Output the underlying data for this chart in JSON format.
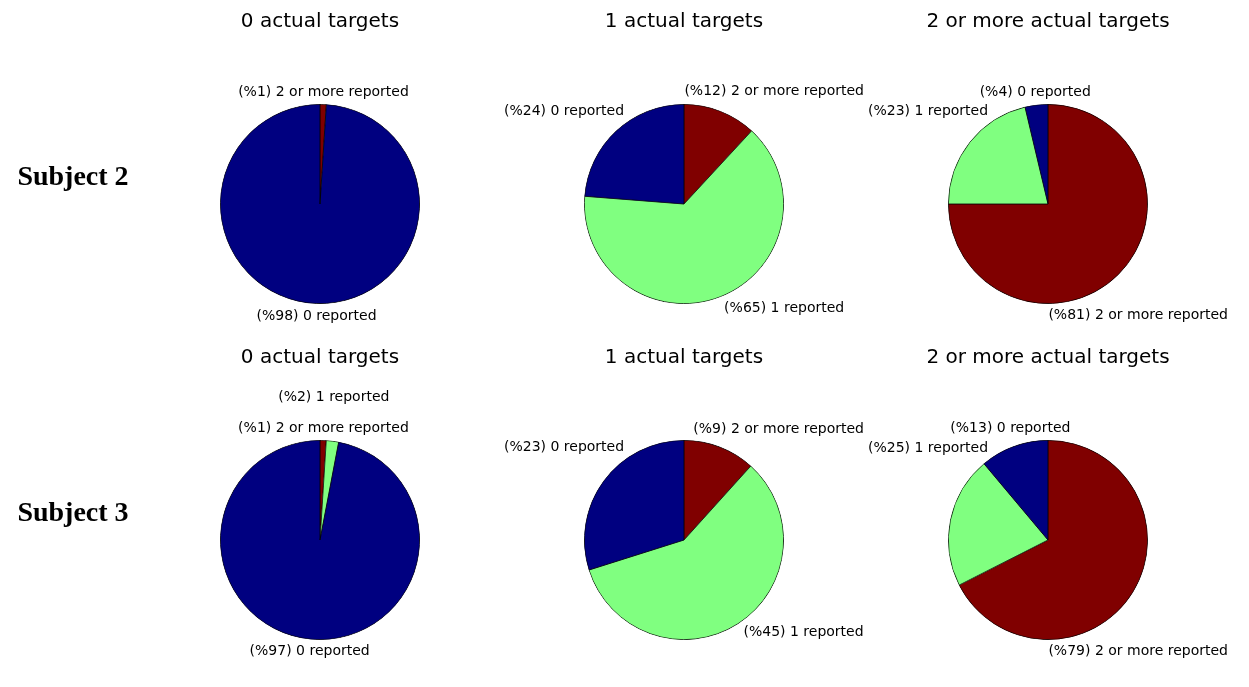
{
  "chart_data": [
    {
      "type": "pie",
      "title": "0 actual targets",
      "annotations": [
        "Subject 2"
      ],
      "categories": [
        "2 or more reported",
        "0 reported"
      ],
      "values": [
        1,
        98
      ],
      "value_labels": [
        "(%1)",
        "(%98)"
      ],
      "colors": [
        "#800000",
        "#000080"
      ],
      "legend": false
    },
    {
      "type": "pie",
      "title": "1 actual targets",
      "categories": [
        "2 or more reported",
        "1 reported",
        "0 reported"
      ],
      "values": [
        12,
        65,
        24
      ],
      "value_labels": [
        "(%12)",
        "(%65)",
        "(%24)"
      ],
      "colors": [
        "#800000",
        "#80ff80",
        "#000080"
      ],
      "legend": false
    },
    {
      "type": "pie",
      "title": "2 or more actual targets",
      "categories": [
        "2 or more reported",
        "1 reported",
        "0 reported"
      ],
      "values": [
        81,
        23,
        4
      ],
      "value_labels": [
        "(%81)",
        "(%23)",
        "(%4)"
      ],
      "colors": [
        "#800000",
        "#80ff80",
        "#000080"
      ],
      "legend": false
    },
    {
      "type": "pie",
      "title": "0 actual targets",
      "annotations": [
        "Subject 3"
      ],
      "categories": [
        "2 or more reported",
        "1 reported",
        "0 reported"
      ],
      "values": [
        1,
        2,
        97
      ],
      "value_labels": [
        "(%1)",
        "(%2)",
        "(%97)"
      ],
      "colors": [
        "#800000",
        "#80ff80",
        "#000080"
      ],
      "legend": false
    },
    {
      "type": "pie",
      "title": "1 actual targets",
      "categories": [
        "2 or more reported",
        "1 reported",
        "0 reported"
      ],
      "values": [
        9,
        45,
        23
      ],
      "value_labels": [
        "(%9)",
        "(%45)",
        "(%23)"
      ],
      "colors": [
        "#800000",
        "#80ff80",
        "#000080"
      ],
      "legend": false
    },
    {
      "type": "pie",
      "title": "2 or more actual targets",
      "categories": [
        "2 or more reported",
        "1 reported",
        "0 reported"
      ],
      "values": [
        79,
        25,
        13
      ],
      "value_labels": [
        "(%79)",
        "(%25)",
        "(%13)"
      ],
      "colors": [
        "#800000",
        "#80ff80",
        "#000080"
      ],
      "legend": false
    }
  ]
}
